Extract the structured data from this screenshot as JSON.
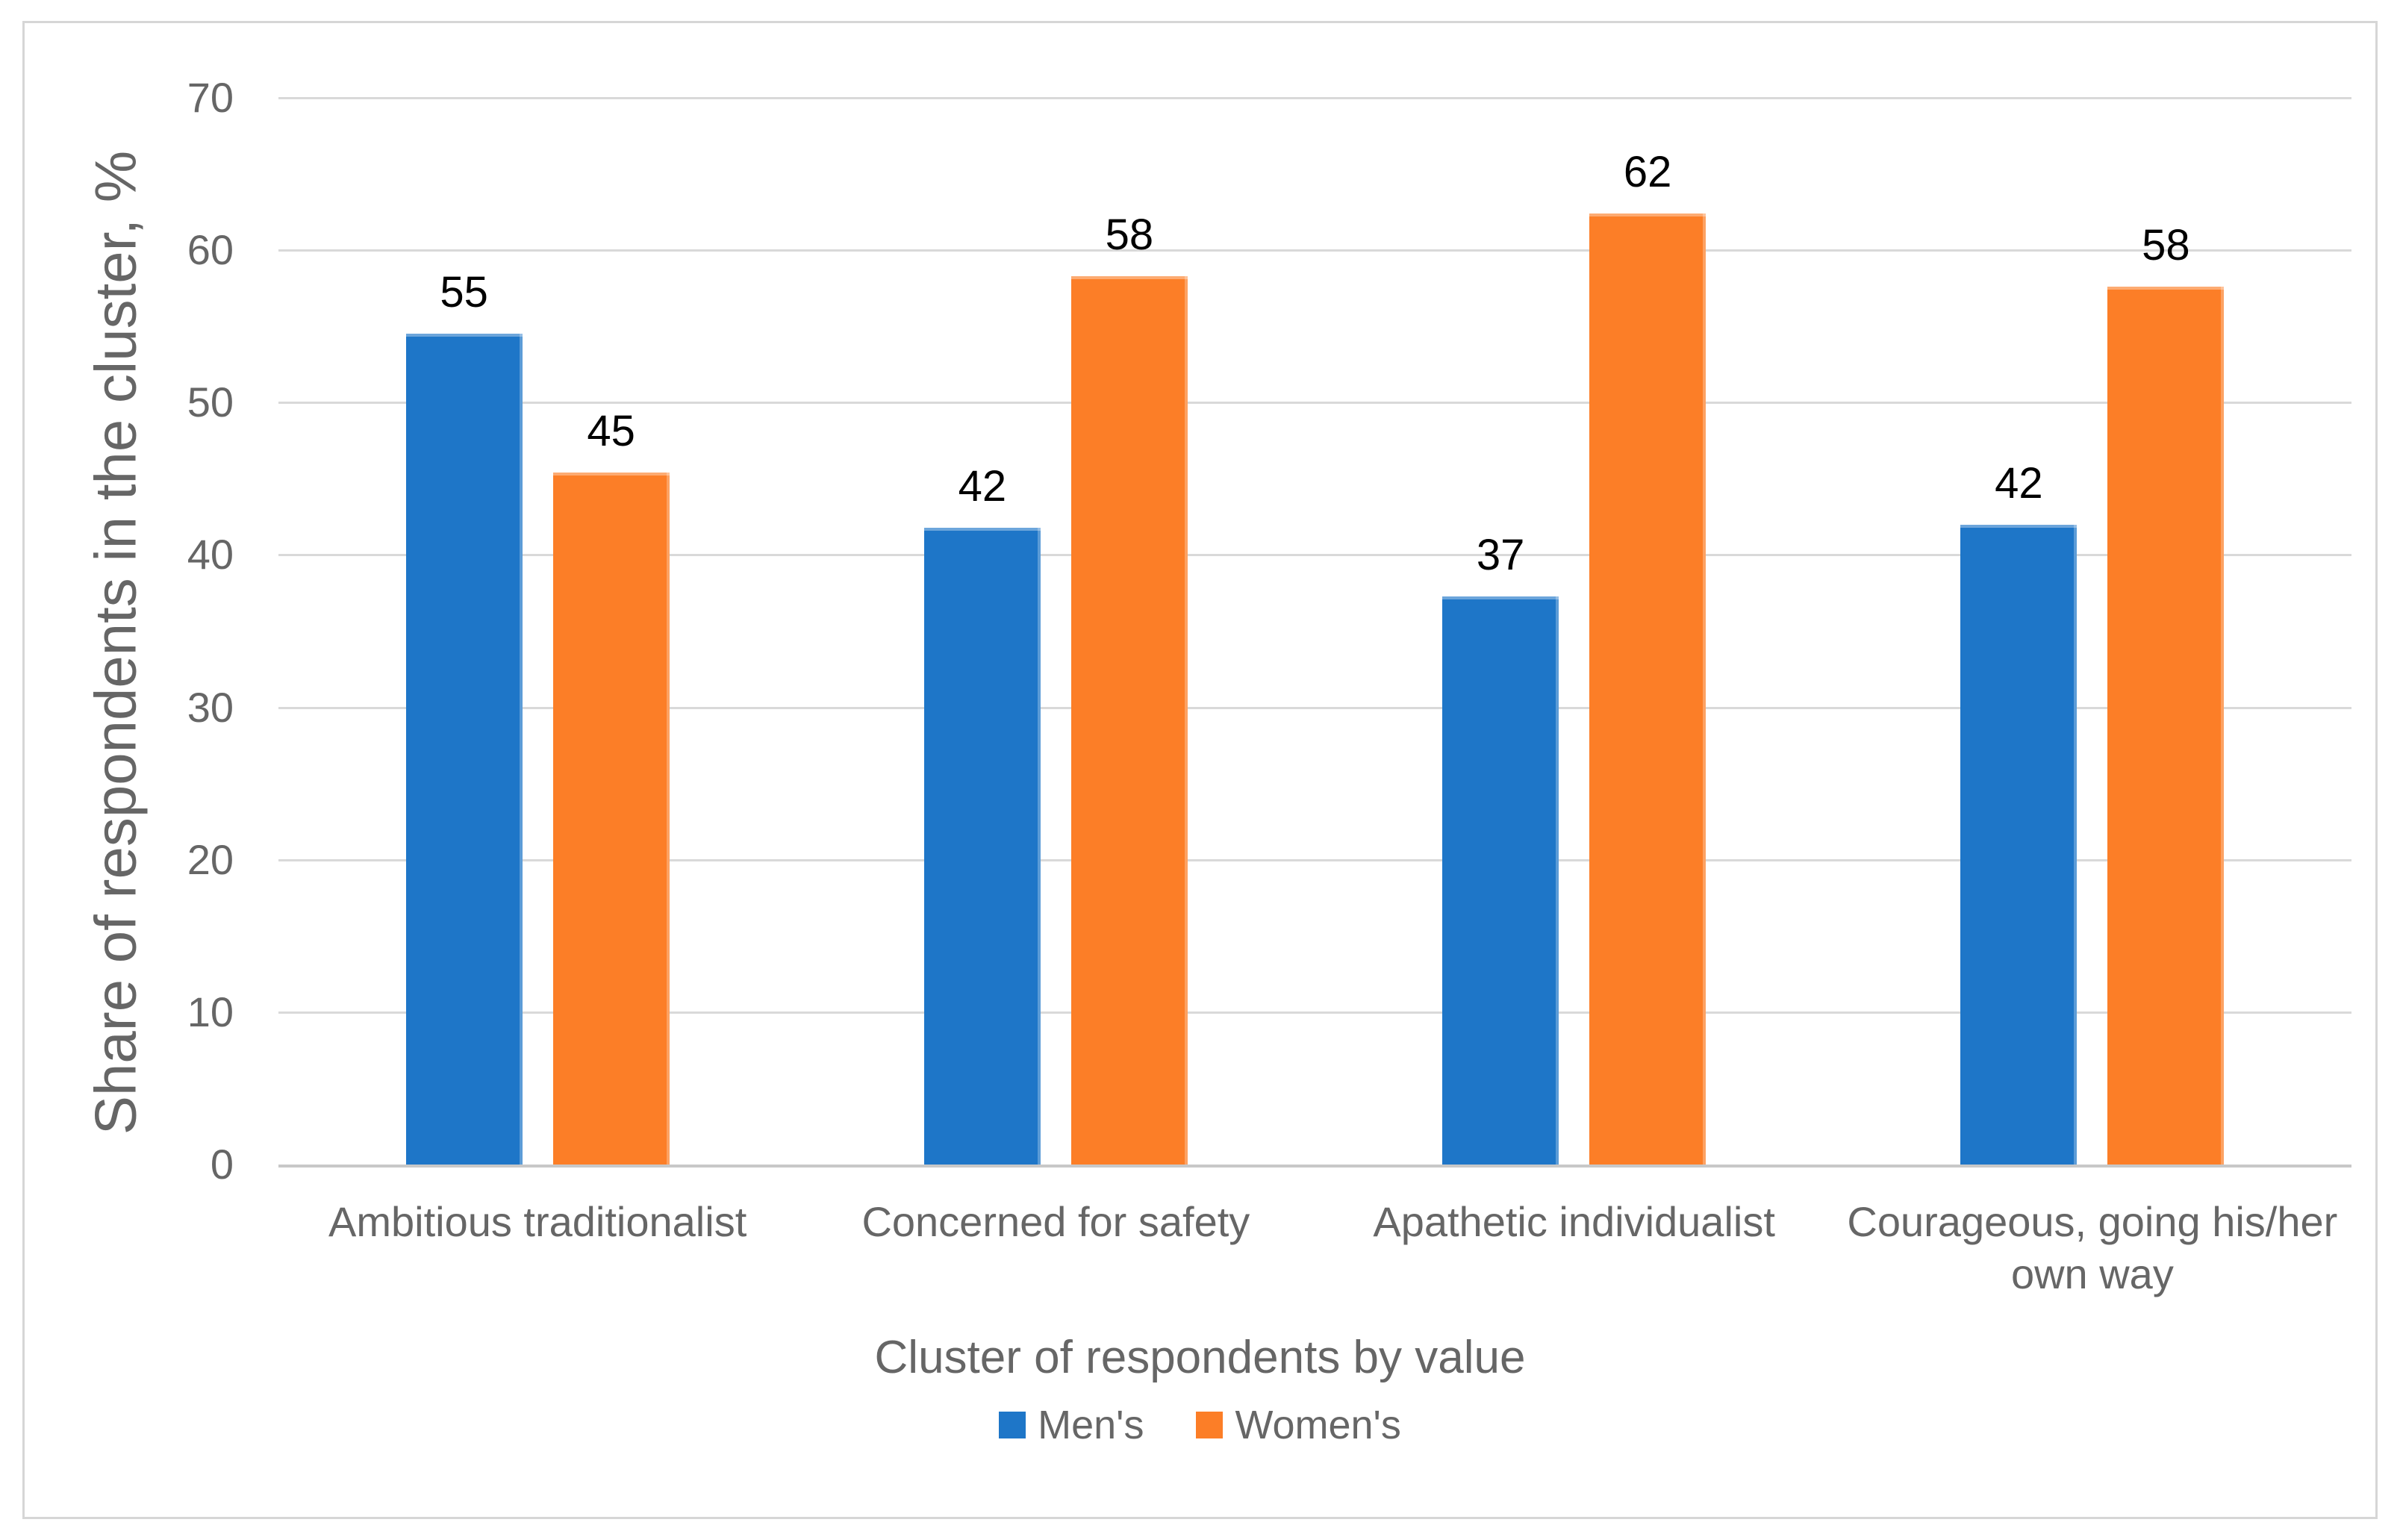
{
  "chart_data": {
    "type": "bar",
    "title": "",
    "categories": [
      "Ambitious traditionalist",
      "Concerned for safety",
      "Apathetic individualist",
      "Courageous, going his/her\nown way"
    ],
    "series": [
      {
        "name": "Men's",
        "color": "#1e76c8",
        "values": [
          54.5,
          41.8,
          37.3,
          42.0
        ],
        "labels": [
          "55",
          "42",
          "37",
          "42"
        ]
      },
      {
        "name": "Women's",
        "color": "#fc7e27",
        "values": [
          45.4,
          58.3,
          62.4,
          57.6
        ],
        "labels": [
          "45",
          "58",
          "62",
          "58"
        ]
      }
    ],
    "xlabel": "Cluster of respondents by value",
    "ylabel": "Share of respondents in the cluster, %",
    "ylim": [
      0,
      70
    ],
    "ytick_step": 10,
    "yticks": [
      "0",
      "10",
      "20",
      "30",
      "40",
      "50",
      "60",
      "70"
    ],
    "grid": true,
    "legend_position": "bottom"
  },
  "colors": {
    "mens_bar": "#1e76c8",
    "womens_bar": "#fc7e27",
    "gridline": "#d9d9d9",
    "axis_line": "#c8c8c8",
    "axis_text": "#666666",
    "data_label_text": "#000000",
    "frame_border": "#d6d6d6",
    "background": "#ffffff"
  }
}
